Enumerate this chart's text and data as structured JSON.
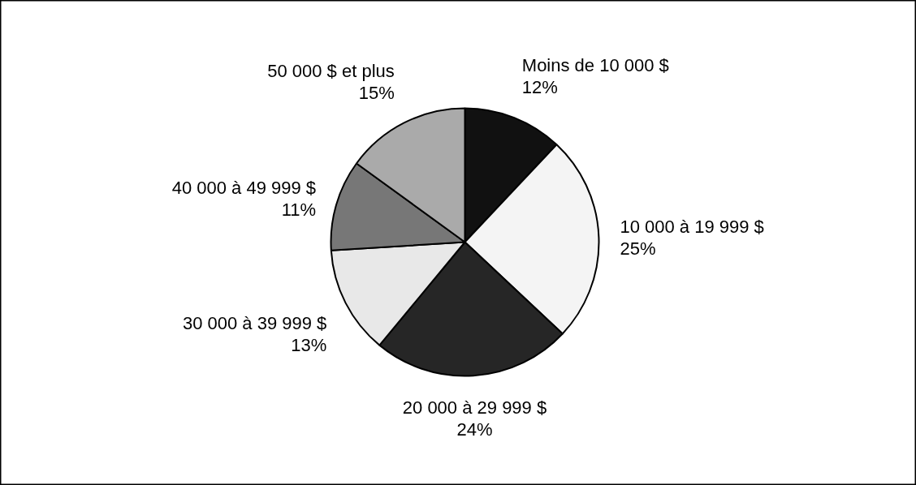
{
  "chart_data": {
    "type": "pie",
    "categories": [
      "Moins de 10 000 $",
      "10 000 à 19 999 $",
      "20 000 à 29 999 $",
      "30 000 à 39 999 $",
      "40 000 à 49 999 $",
      "50 000 $ et plus"
    ],
    "values": [
      12,
      25,
      24,
      13,
      11,
      15
    ],
    "colors": [
      "#111111",
      "#f4f4f4",
      "#262626",
      "#e8e8e8",
      "#777777",
      "#aaaaaa"
    ],
    "value_labels": [
      "12%",
      "25%",
      "24%",
      "13%",
      "11%",
      "15%"
    ]
  }
}
